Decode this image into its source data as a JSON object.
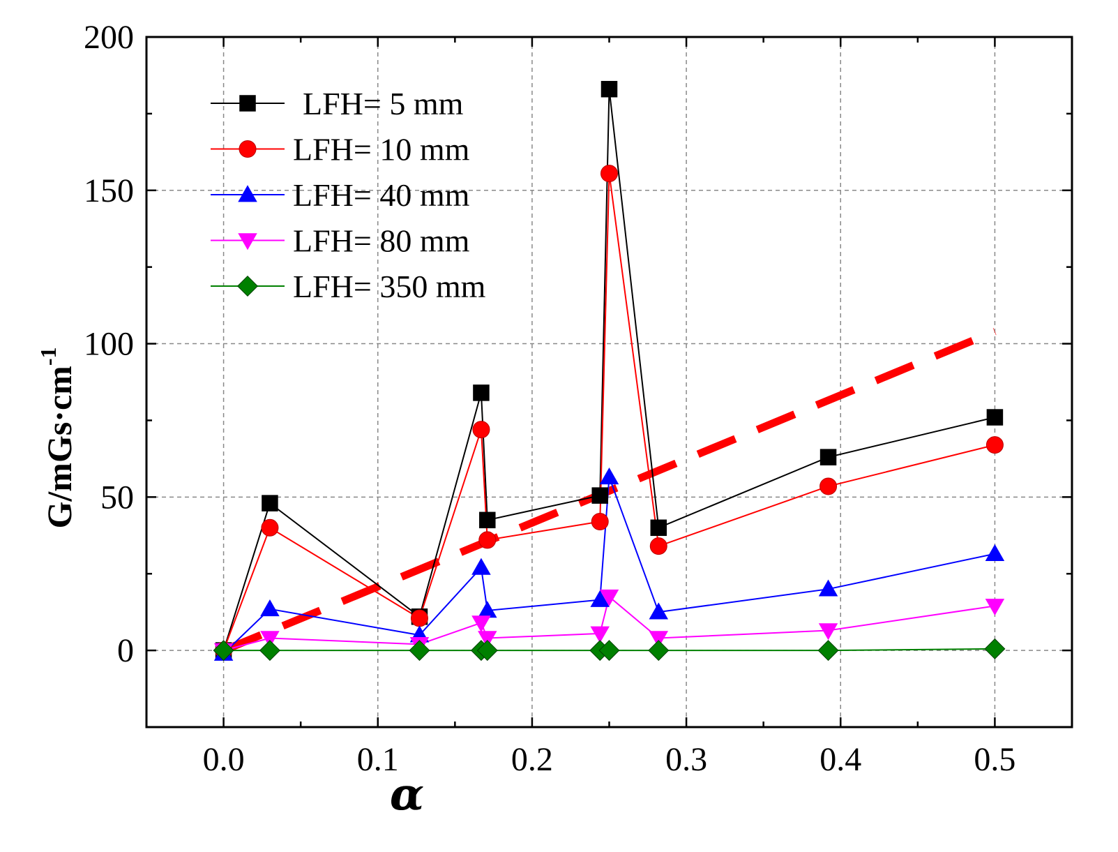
{
  "chart_data": {
    "type": "line",
    "title": "",
    "xlabel": "α",
    "ylabel": "G/mGs·cm",
    "ylabel_superscript": "-1",
    "xlim": [
      -0.05,
      0.55
    ],
    "ylim": [
      -25,
      200
    ],
    "xticks": [
      0.0,
      0.1,
      0.2,
      0.3,
      0.4,
      0.5
    ],
    "xtick_labels": [
      "0.0",
      "0.1",
      "0.2",
      "0.3",
      "0.4",
      "0.5"
    ],
    "yticks": [
      0,
      50,
      100,
      150,
      200
    ],
    "ytick_labels": [
      "0",
      "50",
      "100",
      "150",
      "200"
    ],
    "grid": true,
    "legend_position": "top-left",
    "x": [
      0.0,
      0.03,
      0.127,
      0.167,
      0.171,
      0.244,
      0.25,
      0.282,
      0.392,
      0.5
    ],
    "series": [
      {
        "name": "LFH= 5 mm",
        "color": "#000000",
        "marker": "square",
        "values": [
          0,
          48,
          11,
          84,
          42.5,
          50.5,
          183,
          40,
          63,
          76
        ]
      },
      {
        "name": "LFH= 10 mm",
        "color": "#ff0000",
        "marker": "circle",
        "values": [
          0,
          40,
          10.5,
          72,
          36,
          42,
          155.5,
          34,
          53.5,
          67
        ]
      },
      {
        "name": "LFH= 40 mm",
        "color": "#0000ff",
        "marker": "triangle-up",
        "values": [
          -1,
          13.5,
          5,
          27,
          13,
          16.5,
          56.5,
          12.5,
          20,
          31.5
        ]
      },
      {
        "name": "LFH= 80 mm",
        "color": "#ff00ff",
        "marker": "triangle-down",
        "values": [
          0,
          4,
          2,
          9,
          4,
          5.5,
          17.5,
          4,
          6.5,
          14.5
        ]
      },
      {
        "name": "LFH= 350 mm",
        "color": "#008000",
        "marker": "diamond",
        "values": [
          0,
          0,
          0,
          0,
          0,
          0,
          0,
          0,
          0,
          0.5
        ]
      }
    ],
    "trend_line": {
      "style": "dashed",
      "color": "#ff0000",
      "x": [
        0.0,
        0.5
      ],
      "y": [
        0,
        104
      ]
    }
  }
}
